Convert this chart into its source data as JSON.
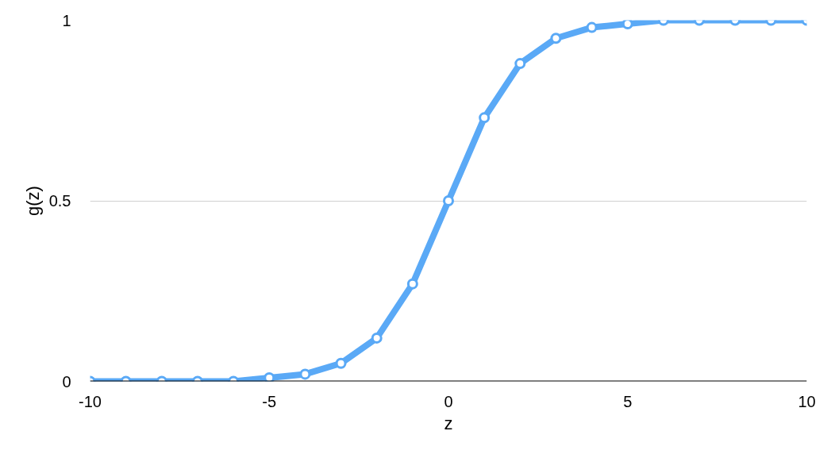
{
  "chart_data": {
    "type": "line",
    "xlabel": "z",
    "ylabel": "g(z)",
    "x": [
      -10,
      -9,
      -8,
      -7,
      -6,
      -5,
      -4,
      -3,
      -2,
      -1,
      0,
      1,
      2,
      3,
      4,
      5,
      6,
      7,
      8,
      9,
      10
    ],
    "series": [
      {
        "color": "#5aa9f6",
        "values": [
          0,
          0,
          0,
          0,
          0,
          0.01,
          0.02,
          0.05,
          0.12,
          0.27,
          0.5,
          0.73,
          0.88,
          0.95,
          0.98,
          0.99,
          1,
          1,
          1,
          1,
          1
        ]
      }
    ],
    "xlim": [
      -10,
      10
    ],
    "ylim": [
      0,
      1
    ],
    "xticks": [
      -10,
      -5,
      0,
      5,
      10
    ],
    "yticks": [
      0,
      0.5,
      1
    ],
    "grid": "y",
    "marker": "circle",
    "line_style": "solid"
  }
}
